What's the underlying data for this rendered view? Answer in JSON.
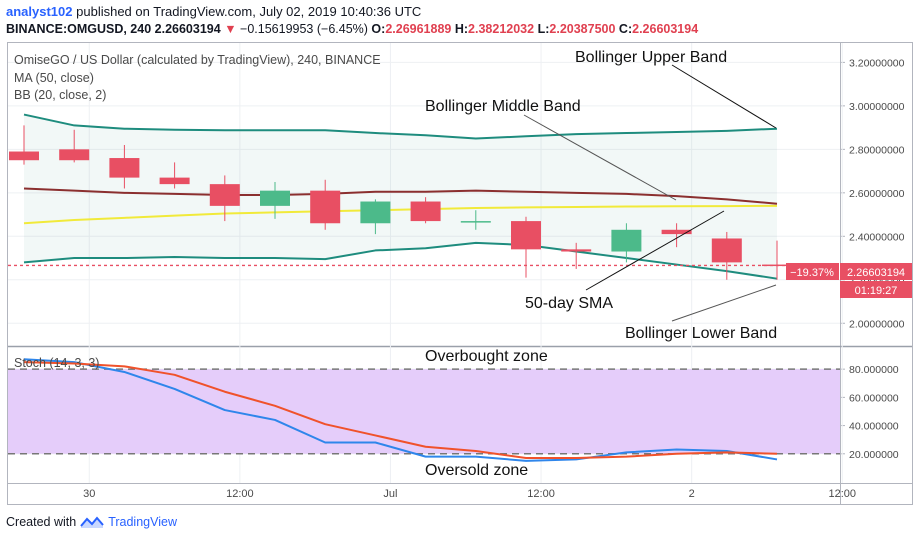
{
  "header": {
    "username": "analyst102",
    "published_text": "published on TradingView.com, July 02, 2019 10:40:36 UTC",
    "symbol": "BINANCE:OMGUSD, 240",
    "last": "2.26603194",
    "arrow": "▼",
    "change": "−0.15619953 (−6.45%)",
    "ohlc": [
      {
        "label": "O:",
        "value": "2.26961889"
      },
      {
        "label": "H:",
        "value": "2.38212032"
      },
      {
        "label": "L:",
        "value": "2.20387500"
      },
      {
        "label": "C:",
        "value": "2.26603194"
      }
    ]
  },
  "legend": {
    "title": "OmiseGO / US Dollar (calculated by TradingView), 240, BINANCE",
    "ma": "MA (50, close)",
    "bb": "BB (20, close, 2)",
    "stoch": "Stoch (14, 3, 3)"
  },
  "price_labels": {
    "change_pct": "−19.37%",
    "price": "2.26603194",
    "countdown": "01:19:27"
  },
  "annotations": {
    "upper": "Bollinger Upper Band",
    "middle": "Bollinger Middle Band",
    "sma": "50-day SMA",
    "lower": "Bollinger Lower Band",
    "overbought": "Overbought zone",
    "oversold": "Oversold zone"
  },
  "footer": {
    "created_with": "Created with",
    "brand": "TradingView"
  },
  "colors": {
    "up": "#4cba8a",
    "down": "#e84f63",
    "bb_band": "#1e8c7e",
    "bb_basis": "#8b2f2f",
    "ma": "#f1ea3a",
    "stoch_k": "#2f86eb",
    "stoch_d": "#f0522b",
    "stoch_fill": "#e5cdfa"
  },
  "chart_data": [
    {
      "type": "candlestick",
      "ylim": [
        1.9,
        3.28
      ],
      "y_ticks": [
        "3.20000000",
        "3.00000000",
        "2.80000000",
        "2.60000000",
        "2.40000000",
        "2.20000000",
        "2.00000000"
      ],
      "y_tick_values": [
        3.2,
        3.0,
        2.8,
        2.6,
        2.4,
        2.2,
        2.0
      ],
      "x_ticks": [
        "30",
        "12:00",
        "Jul",
        "12:00",
        "2",
        "12:00"
      ],
      "x_tick_index": [
        1.3,
        4.3,
        7.3,
        10.3,
        13.3,
        16.3
      ],
      "current_price": 2.266,
      "candles": [
        {
          "o": 2.79,
          "h": 2.91,
          "l": 2.73,
          "c": 2.75
        },
        {
          "o": 2.8,
          "h": 2.89,
          "l": 2.74,
          "c": 2.75
        },
        {
          "o": 2.76,
          "h": 2.82,
          "l": 2.62,
          "c": 2.67
        },
        {
          "o": 2.67,
          "h": 2.74,
          "l": 2.62,
          "c": 2.64
        },
        {
          "o": 2.64,
          "h": 2.68,
          "l": 2.47,
          "c": 2.54
        },
        {
          "o": 2.54,
          "h": 2.65,
          "l": 2.48,
          "c": 2.61
        },
        {
          "o": 2.61,
          "h": 2.66,
          "l": 2.43,
          "c": 2.46
        },
        {
          "o": 2.46,
          "h": 2.57,
          "l": 2.41,
          "c": 2.56
        },
        {
          "o": 2.56,
          "h": 2.58,
          "l": 2.46,
          "c": 2.47
        },
        {
          "o": 2.47,
          "h": 2.52,
          "l": 2.43,
          "c": 2.47
        },
        {
          "o": 2.47,
          "h": 2.49,
          "l": 2.21,
          "c": 2.34
        },
        {
          "o": 2.34,
          "h": 2.37,
          "l": 2.25,
          "c": 2.33
        },
        {
          "o": 2.33,
          "h": 2.46,
          "l": 2.28,
          "c": 2.43
        },
        {
          "o": 2.43,
          "h": 2.46,
          "l": 2.35,
          "c": 2.41
        },
        {
          "o": 2.39,
          "h": 2.42,
          "l": 2.2,
          "c": 2.28
        },
        {
          "o": 2.27,
          "h": 2.38,
          "l": 2.2,
          "c": 2.266
        }
      ],
      "series": [
        {
          "name": "BB upper",
          "values": [
            2.96,
            2.91,
            2.895,
            2.89,
            2.888,
            2.888,
            2.888,
            2.875,
            2.865,
            2.85,
            2.86,
            2.87,
            2.875,
            2.88,
            2.885,
            2.895
          ]
        },
        {
          "name": "BB basis",
          "values": [
            2.62,
            2.61,
            2.6,
            2.595,
            2.59,
            2.59,
            2.595,
            2.605,
            2.605,
            2.61,
            2.605,
            2.6,
            2.595,
            2.585,
            2.57,
            2.55
          ]
        },
        {
          "name": "BB lower",
          "values": [
            2.28,
            2.3,
            2.3,
            2.305,
            2.3,
            2.3,
            2.295,
            2.335,
            2.345,
            2.37,
            2.36,
            2.33,
            2.3,
            2.27,
            2.24,
            2.205
          ]
        },
        {
          "name": "MA (50, close)",
          "values": [
            2.46,
            2.475,
            2.485,
            2.495,
            2.505,
            2.51,
            2.515,
            2.52,
            2.525,
            2.53,
            2.533,
            2.535,
            2.537,
            2.538,
            2.539,
            2.54
          ]
        }
      ]
    },
    {
      "type": "line",
      "ylim": [
        0,
        95
      ],
      "y_ticks": [
        "80.000000",
        "60.000000",
        "40.000000",
        "20.000000"
      ],
      "y_tick_values": [
        80,
        60,
        40,
        20
      ],
      "bands": [
        80,
        20
      ],
      "series": [
        {
          "name": "%K",
          "values": [
            87,
            85,
            78,
            66,
            51,
            44,
            28,
            28,
            18,
            18,
            15,
            16,
            21,
            23,
            22,
            16
          ]
        },
        {
          "name": "%D",
          "values": [
            85,
            84,
            82,
            76,
            64,
            54,
            41,
            33,
            25,
            22,
            17,
            17,
            18,
            20,
            21,
            20
          ]
        }
      ]
    }
  ]
}
